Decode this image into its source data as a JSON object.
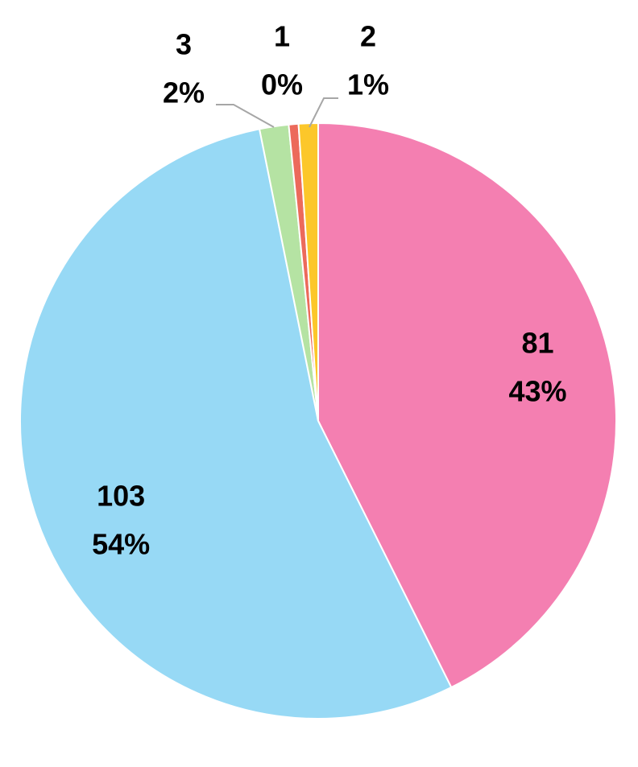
{
  "chart_data": {
    "type": "pie",
    "categories": [
      null,
      null,
      null,
      null,
      null
    ],
    "values": [
      81,
      103,
      3,
      1,
      2
    ],
    "percent_labels": [
      "43%",
      "54%",
      "2%",
      "0%",
      "1%"
    ],
    "colors": [
      "#f47fb1",
      "#97d9f5",
      "#b5e3a3",
      "#ec6a5b",
      "#fcc72a"
    ]
  }
}
